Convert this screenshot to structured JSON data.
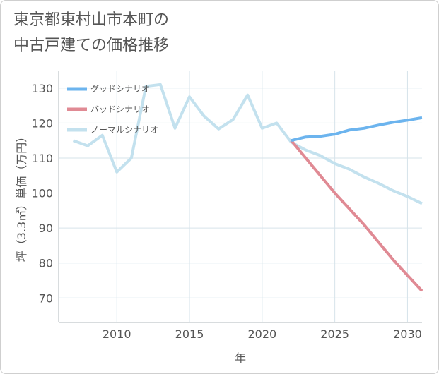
{
  "title_lines": [
    "東京都東村山市本町の",
    "中古戸建ての価格推移"
  ],
  "colors": {
    "good": "#6cb4ee",
    "bad": "#e08a94",
    "normal": "#c3e1ee",
    "grid": "#d6e3ea",
    "text": "#555555"
  },
  "chart_data": {
    "type": "line",
    "title": "東京都東村山市本町の中古戸建ての価格推移",
    "xlabel": "年",
    "ylabel": "坪（3.3㎡）単価（万円）",
    "xlim": [
      2006,
      2031
    ],
    "ylim": [
      63,
      135
    ],
    "x_ticks": [
      2010,
      2015,
      2020,
      2025,
      2030
    ],
    "y_ticks": [
      70,
      80,
      90,
      100,
      110,
      120,
      130
    ],
    "legend_position": "top-left",
    "series": [
      {
        "name": "グッドシナリオ",
        "color": "#6cb4ee",
        "x": [
          2022,
          2023,
          2024,
          2025,
          2026,
          2027,
          2028,
          2029,
          2030,
          2031
        ],
        "y": [
          115,
          116,
          116.2,
          116.8,
          118,
          118.5,
          119.4,
          120.2,
          120.8,
          121.5
        ]
      },
      {
        "name": "バッドシナリオ",
        "color": "#e08a94",
        "x": [
          2022,
          2023,
          2024,
          2025,
          2026,
          2027,
          2028,
          2029,
          2030,
          2031
        ],
        "y": [
          115,
          110,
          105,
          100,
          95.5,
          91,
          86,
          81,
          76.5,
          72
        ]
      },
      {
        "name": "ノーマルシナリオ",
        "color": "#c3e1ee",
        "x": [
          2007,
          2008,
          2009,
          2010,
          2011,
          2012,
          2013,
          2014,
          2015,
          2016,
          2017,
          2018,
          2019,
          2020,
          2021,
          2022,
          2023,
          2024,
          2025,
          2026,
          2027,
          2028,
          2029,
          2030,
          2031
        ],
        "y": [
          115,
          113.5,
          116.5,
          106,
          110,
          130.5,
          131,
          118.5,
          127.5,
          122,
          118.3,
          121,
          128,
          118.5,
          120,
          114.5,
          112.3,
          110.7,
          108.4,
          106.8,
          104.6,
          102.8,
          100.7,
          99,
          97
        ]
      }
    ]
  }
}
